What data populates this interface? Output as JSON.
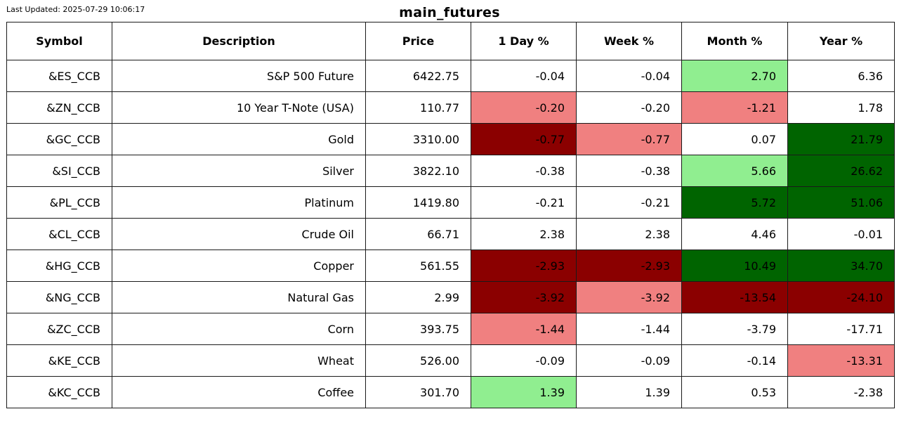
{
  "header": {
    "last_updated": "Last Updated: 2025-07-29 10:06:17",
    "title": "main_futures"
  },
  "colors": {
    "dark-red": "#8b0000",
    "light-red": "#f08080",
    "dark-green": "#006400",
    "light-green": "#90ee90",
    "none": "#ffffff"
  },
  "chart_data": {
    "type": "table",
    "title": "main_futures",
    "columns": [
      "Symbol",
      "Description",
      "Price",
      "1 Day %",
      "Week %",
      "Month %",
      "Year %"
    ],
    "rows": [
      {
        "symbol": "&ES_CCB",
        "description": "S&P 500 Future",
        "price": "6422.75",
        "day": "-0.04",
        "week": "-0.04",
        "month": "2.70",
        "year": "6.36"
      },
      {
        "symbol": "&ZN_CCB",
        "description": "10 Year T-Note (USA)",
        "price": "110.77",
        "day": "-0.20",
        "week": "-0.20",
        "month": "-1.21",
        "year": "1.78"
      },
      {
        "symbol": "&GC_CCB",
        "description": "Gold",
        "price": "3310.00",
        "day": "-0.77",
        "week": "-0.77",
        "month": "0.07",
        "year": "21.79"
      },
      {
        "symbol": "&SI_CCB",
        "description": "Silver",
        "price": "3822.10",
        "day": "-0.38",
        "week": "-0.38",
        "month": "5.66",
        "year": "26.62"
      },
      {
        "symbol": "&PL_CCB",
        "description": "Platinum",
        "price": "1419.80",
        "day": "-0.21",
        "week": "-0.21",
        "month": "5.72",
        "year": "51.06"
      },
      {
        "symbol": "&CL_CCB",
        "description": "Crude Oil",
        "price": "66.71",
        "day": "2.38",
        "week": "2.38",
        "month": "4.46",
        "year": "-0.01"
      },
      {
        "symbol": "&HG_CCB",
        "description": "Copper",
        "price": "561.55",
        "day": "-2.93",
        "week": "-2.93",
        "month": "10.49",
        "year": "34.70"
      },
      {
        "symbol": "&NG_CCB",
        "description": "Natural Gas",
        "price": "2.99",
        "day": "-3.92",
        "week": "-3.92",
        "month": "-13.54",
        "year": "-24.10"
      },
      {
        "symbol": "&ZC_CCB",
        "description": "Corn",
        "price": "393.75",
        "day": "-1.44",
        "week": "-1.44",
        "month": "-3.79",
        "year": "-17.71"
      },
      {
        "symbol": "&KE_CCB",
        "description": "Wheat",
        "price": "526.00",
        "day": "-0.09",
        "week": "-0.09",
        "month": "-0.14",
        "year": "-13.31"
      },
      {
        "symbol": "&KC_CCB",
        "description": "Coffee",
        "price": "301.70",
        "day": "1.39",
        "week": "1.39",
        "month": "0.53",
        "year": "-2.38"
      }
    ],
    "cell_fills": [
      {
        "day": "none",
        "week": "none",
        "month": "light-green",
        "year": "none"
      },
      {
        "day": "light-red",
        "week": "none",
        "month": "light-red",
        "year": "none"
      },
      {
        "day": "dark-red",
        "week": "light-red",
        "month": "none",
        "year": "dark-green"
      },
      {
        "day": "none",
        "week": "none",
        "month": "light-green",
        "year": "dark-green"
      },
      {
        "day": "none",
        "week": "none",
        "month": "dark-green",
        "year": "dark-green"
      },
      {
        "day": "none",
        "week": "none",
        "month": "none",
        "year": "none"
      },
      {
        "day": "dark-red",
        "week": "dark-red",
        "month": "dark-green",
        "year": "dark-green"
      },
      {
        "day": "dark-red",
        "week": "light-red",
        "month": "dark-red",
        "year": "dark-red"
      },
      {
        "day": "light-red",
        "week": "none",
        "month": "none",
        "year": "none"
      },
      {
        "day": "none",
        "week": "none",
        "month": "none",
        "year": "light-red"
      },
      {
        "day": "light-green",
        "week": "none",
        "month": "none",
        "year": "none"
      }
    ]
  }
}
